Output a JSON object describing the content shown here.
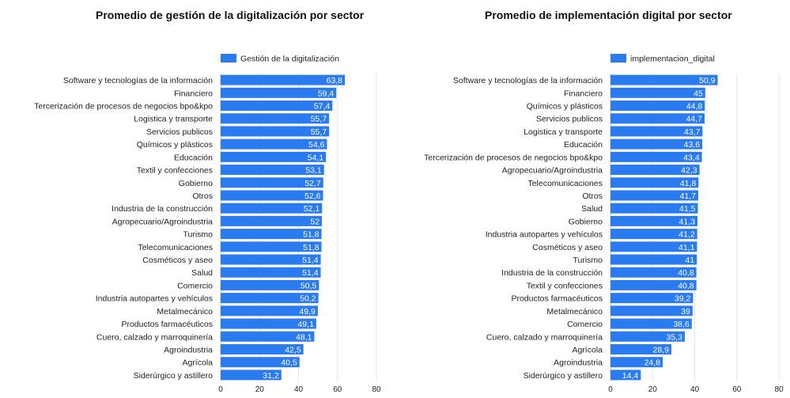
{
  "colors": {
    "bar": "#2b7bf0",
    "bar_label": "#ffffff",
    "grid": "#e6e6e6"
  },
  "chart_data": [
    {
      "type": "bar",
      "orientation": "horizontal",
      "title": "Promedio de gestión de la digitalización por sector",
      "legend": "Gestión de la digitalización",
      "legend_position": "top-left",
      "grid": true,
      "xlim": [
        0,
        80
      ],
      "xticks": [
        "0",
        "20",
        "40",
        "60",
        "80"
      ],
      "categories": [
        "Software y tecnologías de la información",
        "Financiero",
        "Tercerización de procesos de negocios bpo&kpo",
        "Logistica y transporte",
        "Servicios publicos",
        "Químicos y plásticos",
        "Educación",
        "Textil y confecciones",
        "Gobierno",
        "Otros",
        "Industria de la construcción",
        "Agropecuario/Agroindustria",
        "Turismo",
        "Telecomunicaciones",
        "Cosméticos y aseo",
        "Salud",
        "Comercio",
        "Industria autopartes y vehículos",
        "Metalmecánico",
        "Productos farmacéuticos",
        "Cuero, calzado y marroquinería",
        "Agroindustria",
        "Agrícola",
        "Siderúrgico y astillero"
      ],
      "values": [
        63.8,
        59.4,
        57.4,
        55.7,
        55.7,
        54.6,
        54.1,
        53.1,
        52.7,
        52.6,
        52.1,
        52,
        51.8,
        51.8,
        51.4,
        51.4,
        50.5,
        50.2,
        49.9,
        49.1,
        48.1,
        42.5,
        40.5,
        31.2
      ],
      "value_labels": [
        "63,8",
        "59,4",
        "57,4",
        "55,7",
        "55,7",
        "54,6",
        "54,1",
        "53,1",
        "52,7",
        "52,6",
        "52,1",
        "52",
        "51,8",
        "51,8",
        "51,4",
        "51,4",
        "50,5",
        "50,2",
        "49,9",
        "49,1",
        "48,1",
        "42,5",
        "40,5",
        "31,2"
      ]
    },
    {
      "type": "bar",
      "orientation": "horizontal",
      "title": "Promedio de implementación digital por sector",
      "legend": "implementacion_digital",
      "legend_position": "top-left",
      "grid": true,
      "xlim": [
        0,
        80
      ],
      "xticks": [
        "0",
        "20",
        "40",
        "60",
        "80"
      ],
      "categories": [
        "Software y tecnologías de la información",
        "Financiero",
        "Químicos y plásticos",
        "Servicios publicos",
        "Logistica y transporte",
        "Educación",
        "Tercerización de procesos de negocios bpo&kpo",
        "Agropecuario/Agroindustria",
        "Telecomunicaciones",
        "Otros",
        "Salud",
        "Gobierno",
        "Industria autopartes y vehículos",
        "Cosméticos y aseo",
        "Turismo",
        "Industria de la construcción",
        "Textil y confecciones",
        "Productos farmacéuticos",
        "Metalmecánico",
        "Comercio",
        "Cuero, calzado y marroquinería",
        "Agrícola",
        "Agroindustria",
        "Siderúrgico y astillero"
      ],
      "values": [
        50.9,
        45,
        44.8,
        44.7,
        43.7,
        43.6,
        43.4,
        42.3,
        41.8,
        41.7,
        41.5,
        41.3,
        41.2,
        41.1,
        41,
        40.8,
        40.8,
        39.2,
        39,
        38.6,
        35.3,
        28.9,
        24.8,
        14.4
      ],
      "value_labels": [
        "50,9",
        "45",
        "44,8",
        "44,7",
        "43,7",
        "43,6",
        "43,4",
        "42,3",
        "41,8",
        "41,7",
        "41,5",
        "41,3",
        "41,2",
        "41,1",
        "41",
        "40,8",
        "40,8",
        "39,2",
        "39",
        "38,6",
        "35,3",
        "28,9",
        "24,8",
        "14,4"
      ]
    }
  ]
}
